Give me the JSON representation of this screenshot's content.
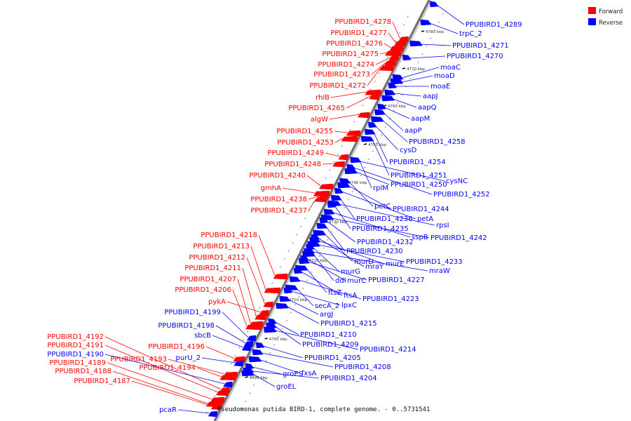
{
  "legend": [
    {
      "label": "Forward",
      "color": "#ff0000"
    },
    {
      "label": "Reverse",
      "color": "#0000ff"
    }
  ],
  "caption": "Pseudomonas putida BIRD-1, complete genome. - 0..5731541",
  "ticks": [
    "4690 kbp",
    "4700 kbp",
    "4710 kbp",
    "4720 kbp",
    "4730 kbp",
    "4740 kbp",
    "4750 kbp",
    "4760 kbp",
    "4770 kbp",
    "4780 kbp"
  ],
  "forward_genes": [
    "PPUBIRD1_4278",
    "PPUBIRD1_4277",
    "PPUBIRD1_4276",
    "PPUBIRD1_4275",
    "PPUBIRD1_4274",
    "PPUBIRD1_4273",
    "PPUBIRD1_4272",
    "rhlB",
    "PPUBIRD1_4265",
    "algW",
    "PPUBIRD1_4255",
    "PPUBIRD1_4253",
    "PPUBIRD1_4249",
    "PPUBIRD1_4248",
    "PPUBIRD1_4240",
    "gmhA",
    "PPUBIRD1_4238",
    "PPUBIRD1_4237",
    "PPUBIRD1_4218",
    "PPUBIRD1_4213",
    "PPUBIRD1_4212",
    "PPUBIRD1_4211",
    "PPUBIRD1_4207",
    "PPUBIRD1_4206",
    "pykA",
    "PPUBIRD1_4196",
    "PPUBIRD1_4193",
    "PPUBIRD1_4194",
    "PPUBIRD1_4192",
    "PPUBIRD1_4191",
    "PPUBIRD1_4189",
    "PPUBIRD1_4188",
    "PPUBIRD1_4187"
  ],
  "reverse_genes_left": [
    "PPUBIRD1_4199",
    "PPUBIRD1_4198",
    "sbcB",
    "purU_2",
    "PPUBIRD1_4190",
    "pcaR"
  ],
  "reverse_genes_right": [
    "PPUBIRD1_4289",
    "trpC_2",
    "PPUBIRD1_4271",
    "PPUBIRD1_4270",
    "moaC",
    "moaD",
    "moaE",
    "aapJ",
    "aapQ",
    "aapM",
    "aapP",
    "PPUBIRD1_4258",
    "cysD",
    "PPUBIRD1_4254",
    "PPUBIRD1_4251",
    "cysNC",
    "rplM",
    "PPUBIRD1_4250",
    "PPUBIRD1_4252",
    "petC",
    "PPUBIRD1_4244",
    "petA",
    "PPUBIRD1_4236",
    "rpsI",
    "PPUBIRD1_4235",
    "sspB",
    "PPUBIRD1_4242",
    "PPUBIRD1_4232",
    "PPUBIRD1_4230",
    "murD",
    "mraY",
    "murE",
    "PPUBIRD1_4233",
    "murG",
    "mraW",
    "ddl",
    "murC",
    "PPUBIRD1_4227",
    "ftsZ",
    "ftsA",
    "PPUBIRD1_4223",
    "secA_2",
    "lpxC",
    "argJ",
    "PPUBIRD1_4215",
    "PPUBIRD1_4210",
    "PPUBIRD1_4209",
    "PPUBIRD1_4214",
    "PPUBIRD1_4205",
    "PPUBIRD1_4208",
    "fxsA",
    "groES",
    "PPUBIRD1_4204",
    "groEL"
  ]
}
